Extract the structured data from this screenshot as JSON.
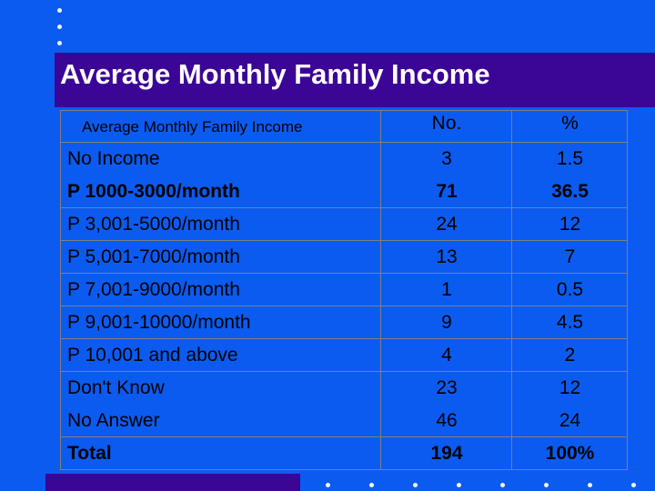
{
  "title": "Average Monthly Family Income",
  "table": {
    "headers": [
      "Average Monthly Family Income",
      "No.",
      "%"
    ],
    "rows": [
      {
        "label": "No Income",
        "no": "3",
        "pct": "1.5"
      },
      {
        "label": "P 1000-3000/month",
        "no": "71",
        "pct": "36.5"
      },
      {
        "label": "P 3,001-5000/month",
        "no": "24",
        "pct": "12"
      },
      {
        "label": "P 5,001-7000/month",
        "no": "13",
        "pct": "7"
      },
      {
        "label": "P 7,001-9000/month",
        "no": "1",
        "pct": "0.5"
      },
      {
        "label": "P 9,001-10000/month",
        "no": "9",
        "pct": "4.5"
      },
      {
        "label": "P 10,001 and above",
        "no": "4",
        "pct": "2"
      },
      {
        "label": "Don't Know",
        "no": "23",
        "pct": "12"
      },
      {
        "label": "No Answer",
        "no": "46",
        "pct": "24"
      },
      {
        "label": "Total",
        "no": "194",
        "pct": "100%"
      }
    ]
  },
  "colors": {
    "background": "#0b5bf0",
    "title_band": "#3b0596",
    "title_text": "#ffffff",
    "table_text": "#000000",
    "bullet": "#f4f4f4"
  },
  "decoration": {
    "left_bullets": "bullet-dot-icon",
    "bottom_bullets": "bullet-dot-icon"
  }
}
